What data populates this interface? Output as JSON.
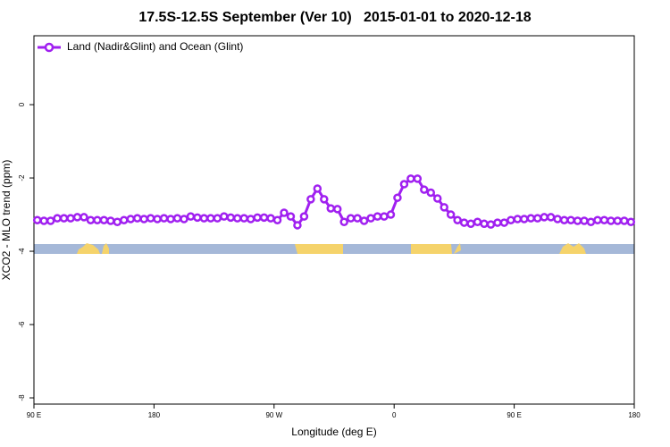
{
  "chart_data": {
    "type": "line",
    "title": "17.5S-12.5S September (Ver 10)   2015-01-01 to 2020-12-18",
    "x_label": "Longitude (deg E)",
    "y_label": "XCO2 - MLO trend (ppm)",
    "x": [
      92.5,
      97.5,
      102.5,
      107.5,
      112.5,
      117.5,
      122.5,
      127.5,
      132.5,
      137.5,
      142.5,
      147.5,
      152.5,
      157.5,
      162.5,
      167.5,
      172.5,
      177.5,
      182.5,
      187.5,
      192.5,
      197.5,
      202.5,
      207.5,
      212.5,
      217.5,
      222.5,
      227.5,
      232.5,
      237.5,
      242.5,
      247.5,
      252.5,
      257.5,
      262.5,
      267.5,
      272.5,
      277.5,
      282.5,
      287.5,
      292.5,
      297.5,
      302.5,
      307.5,
      312.5,
      317.5,
      322.5,
      327.5,
      332.5,
      337.5,
      342.5,
      347.5,
      352.5,
      357.5,
      362.5,
      367.5,
      372.5,
      377.5,
      382.5,
      387.5,
      392.5,
      397.5,
      402.5,
      407.5,
      412.5,
      417.5,
      422.5,
      427.5,
      432.5,
      437.5,
      442.5,
      447.5,
      452.5,
      457.5,
      462.5,
      467.5,
      472.5,
      477.5,
      482.5,
      487.5,
      492.5,
      497.5,
      502.5,
      507.5,
      512.5,
      517.5,
      522.5,
      527.5,
      532.5,
      537.5
    ],
    "series": [
      {
        "name": "Land (Nadir&Glint) and Ocean (Glint)",
        "color": "#a020f0",
        "values": [
          -3.15,
          -3.17,
          -3.17,
          -3.1,
          -3.1,
          -3.1,
          -3.07,
          -3.07,
          -3.15,
          -3.15,
          -3.15,
          -3.17,
          -3.2,
          -3.15,
          -3.12,
          -3.1,
          -3.12,
          -3.1,
          -3.12,
          -3.1,
          -3.12,
          -3.1,
          -3.12,
          -3.05,
          -3.08,
          -3.1,
          -3.1,
          -3.1,
          -3.05,
          -3.08,
          -3.1,
          -3.1,
          -3.12,
          -3.08,
          -3.08,
          -3.1,
          -3.15,
          -2.95,
          -3.05,
          -3.29,
          -3.05,
          -2.58,
          -2.29,
          -2.58,
          -2.83,
          -2.85,
          -3.2,
          -3.1,
          -3.1,
          -3.17,
          -3.1,
          -3.05,
          -3.05,
          -3.0,
          -2.54,
          -2.17,
          -2.02,
          -2.02,
          -2.32,
          -2.4,
          -2.56,
          -2.8,
          -3.0,
          -3.15,
          -3.22,
          -3.25,
          -3.2,
          -3.25,
          -3.27,
          -3.22,
          -3.22,
          -3.15,
          -3.12,
          -3.12,
          -3.1,
          -3.1,
          -3.07,
          -3.07,
          -3.12,
          -3.15,
          -3.15,
          -3.17,
          -3.17,
          -3.2,
          -3.15,
          -3.15,
          -3.17,
          -3.17,
          -3.17,
          -3.2
        ]
      }
    ],
    "xlim": [
      90,
      540
    ],
    "xticks": [
      {
        "value": 90,
        "label": "90 E"
      },
      {
        "value": 180,
        "label": "180"
      },
      {
        "value": 270,
        "label": "90 W"
      },
      {
        "value": 360,
        "label": "0"
      },
      {
        "value": 450,
        "label": "90 E"
      },
      {
        "value": 540,
        "label": "180"
      }
    ],
    "ylim": [
      -8.17,
      1.88
    ],
    "yticks": [
      -8,
      -6,
      -4,
      -2,
      0
    ],
    "legend": "top-left"
  }
}
